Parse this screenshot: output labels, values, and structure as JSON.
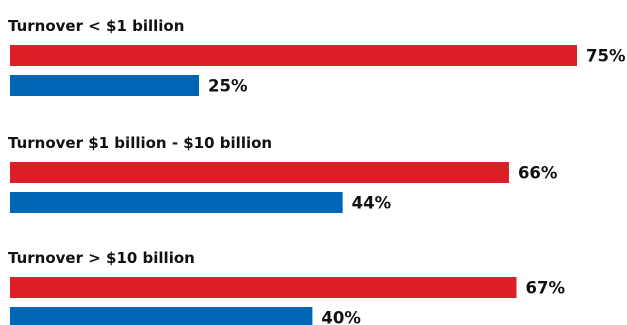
{
  "chart_data": {
    "type": "bar",
    "orientation": "horizontal",
    "categories": [
      "Turnover < $1 billion",
      "Turnover $1 billion - $10 billion",
      "Turnover > $10 billion"
    ],
    "series": [
      {
        "color": "#dc1f26",
        "values": [
          75,
          66,
          67
        ]
      },
      {
        "color": "#0066b3",
        "values": [
          25,
          44,
          40
        ]
      }
    ],
    "value_suffix": "%",
    "xlim": [
      0,
      100
    ],
    "title": "",
    "xlabel": "",
    "ylabel": "",
    "grid": false,
    "legend": "none"
  }
}
